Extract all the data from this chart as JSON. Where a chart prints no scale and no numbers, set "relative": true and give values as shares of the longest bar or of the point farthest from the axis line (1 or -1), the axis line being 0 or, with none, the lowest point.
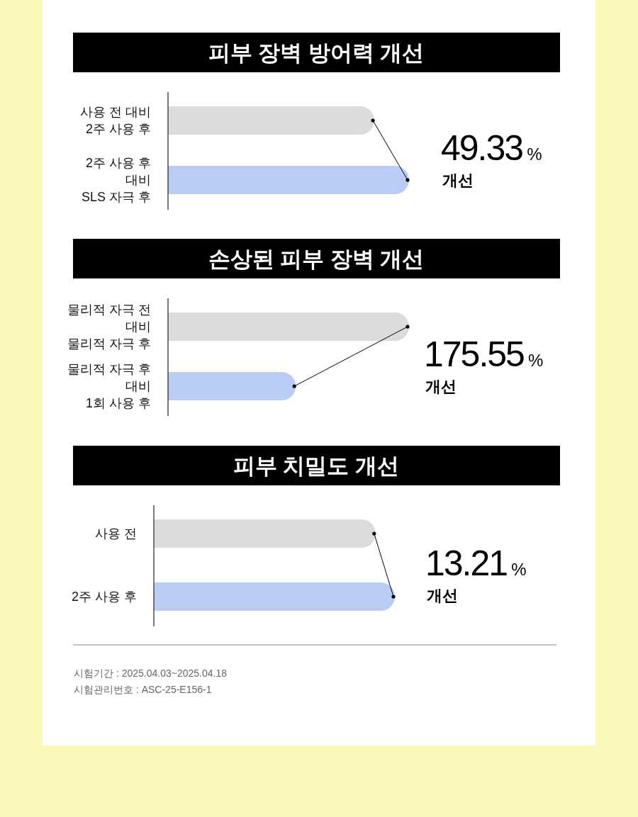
{
  "chart_data": [
    {
      "type": "bar",
      "orientation": "horizontal",
      "relative": true,
      "title": "피부 장벽 방어력 개선",
      "categories": [
        "사용 전 대비\n2주 사용 후",
        "2주 사용 후\n대비\nSLS 자극 후"
      ],
      "values": [
        0.856,
        1
      ],
      "colors": [
        "#dcdcdc",
        "#b9cdf5"
      ],
      "annotations": [
        "49.33%",
        "개선"
      ]
    },
    {
      "type": "bar",
      "orientation": "horizontal",
      "relative": true,
      "title": "손상된 피부 장벽 개선",
      "categories": [
        "물리적 자극 전\n대비\n물리적 자극 후",
        "물리적 자극 후\n대비\n1회 사용 후"
      ],
      "values": [
        1,
        0.53
      ],
      "colors": [
        "#dcdcdc",
        "#b9cdf5"
      ],
      "annotations": [
        "175.55%",
        "개선"
      ]
    },
    {
      "type": "bar",
      "orientation": "horizontal",
      "relative": true,
      "title": "피부 치밀도 개선",
      "categories": [
        "사용 전",
        "2주 사용 후"
      ],
      "values": [
        0.92,
        1
      ],
      "colors": [
        "#dcdcdc",
        "#b9cdf5"
      ],
      "annotations": [
        "13.21%",
        "개선",
        "시험기간 : 2025.04.03~2025.04.18",
        "시험관리번호 : ASC-25-E156-1"
      ]
    }
  ]
}
